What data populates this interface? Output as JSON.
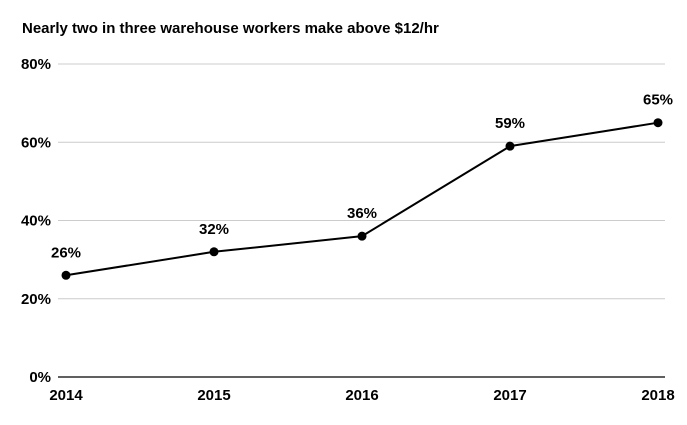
{
  "chart_data": {
    "type": "line",
    "title": "Nearly two in three warehouse workers make above $12/hr",
    "xlabel": "",
    "ylabel": "",
    "categories": [
      "2014",
      "2015",
      "2016",
      "2017",
      "2018"
    ],
    "series": [
      {
        "values": [
          26,
          32,
          36,
          59,
          65
        ],
        "labels": [
          "26%",
          "32%",
          "36%",
          "59%",
          "65%"
        ],
        "color": "#000000"
      }
    ],
    "ylim": [
      0,
      80
    ],
    "y_ticks": [
      0,
      20,
      40,
      60,
      80
    ],
    "y_tick_labels": [
      "0%",
      "20%",
      "40%",
      "60%",
      "80%"
    ],
    "grid": true,
    "legend": "none",
    "gridline_color": "#cccccc",
    "baseline_color": "#000000"
  }
}
